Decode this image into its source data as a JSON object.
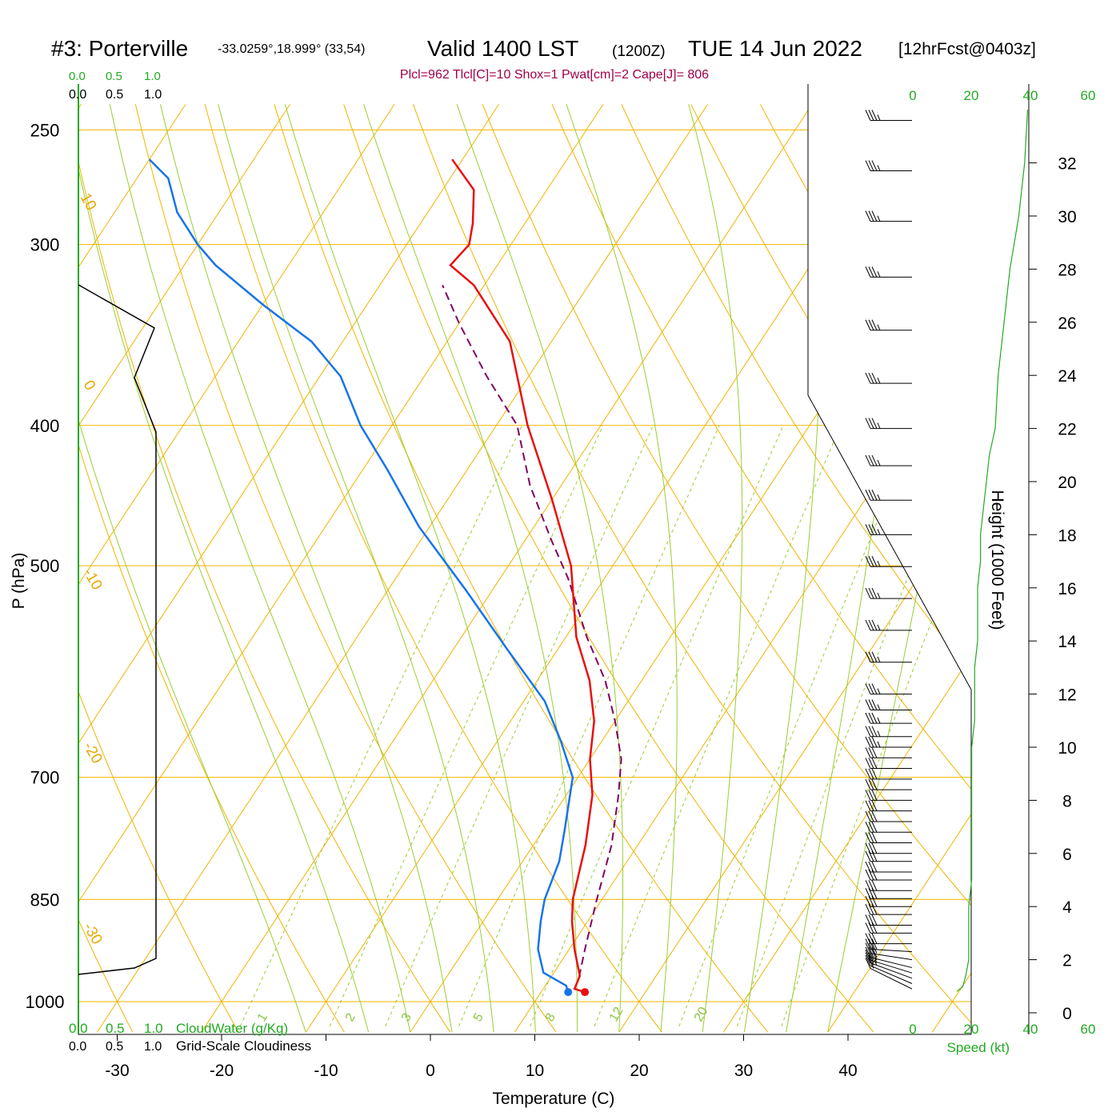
{
  "header": {
    "station": "#3: Porterville",
    "location": "-33.0259°,18.999° (33,54)",
    "valid": "Valid 1400 LST",
    "utc": "(1200Z)",
    "date": "TUE 14 Jun 2022",
    "forecast": "[12hrFcst@0403z]"
  },
  "indices": "Plcl=962 Tlcl[C]=10 Shox=1 Pwat[cm]=2 Cape[J]= 806",
  "colors": {
    "temperature": "#e81010",
    "dewpoint": "#1874e8",
    "parcel": "#800060",
    "isotherm": "#f0b400",
    "dry_adiabat": "#f0b400",
    "moist_adiabat": "#9acd32",
    "mixing_ratio": "#9acd32",
    "cloud_scale": "#22aa22",
    "speed_profile": "#22aa22"
  },
  "left_panel": {
    "cloudwater_ticks": [
      "0.0",
      "0.5",
      "1.0"
    ],
    "cloudiness_ticks": [
      "0.0",
      "0.5",
      "1.0"
    ],
    "cloudwater_label": "CloudWater (g/Kg)",
    "cloudiness_label": "Grid-Scale Cloudiness"
  },
  "speed_axis": {
    "ticks": [
      "0",
      "20",
      "40",
      "60"
    ],
    "label": "Speed (kt)"
  },
  "chart_data": {
    "type": "line",
    "title": "#3: Porterville",
    "xlabel": "Temperature (C)",
    "ylabel": "P (hPa)",
    "y2label": "Height (1000 Feet)",
    "xlim": [
      -34,
      36
    ],
    "ylim": [
      1040,
      250
    ],
    "x_ticks": [
      "-30",
      "-20",
      "-10",
      "0",
      "10",
      "20",
      "30",
      "40"
    ],
    "pressure_ticks": [
      "250",
      "300",
      "400",
      "500",
      "700",
      "850",
      "1000"
    ],
    "height_ticks": [
      "0",
      "2",
      "4",
      "6",
      "8",
      "10",
      "12",
      "14",
      "16",
      "18",
      "20",
      "22",
      "24",
      "26",
      "28",
      "30",
      "32"
    ],
    "isotherm_labels": [
      "10",
      "0",
      "-10",
      "-20",
      "-30",
      "0",
      "10",
      "20",
      "30"
    ],
    "mixing_ratio_labels": [
      "1",
      "2",
      "3",
      "5",
      "8",
      "12",
      "20"
    ],
    "series": [
      {
        "name": "Temperature",
        "points": [
          [
            14.2,
            985
          ],
          [
            13.0,
            980
          ],
          [
            12.7,
            960
          ],
          [
            10.5,
            920
          ],
          [
            8.5,
            880
          ],
          [
            7.2,
            850
          ],
          [
            5.0,
            780
          ],
          [
            2.5,
            720
          ],
          [
            0.0,
            680
          ],
          [
            -2.0,
            640
          ],
          [
            -5.0,
            600
          ],
          [
            -9.0,
            560
          ],
          [
            -14.0,
            500
          ],
          [
            -20.0,
            450
          ],
          [
            -27.0,
            400
          ],
          [
            -34.0,
            350
          ],
          [
            -41.0,
            320
          ],
          [
            -44.5,
            310
          ],
          [
            -44.0,
            300
          ],
          [
            -45.0,
            290
          ],
          [
            -47.0,
            275
          ],
          [
            -51.0,
            262
          ]
        ]
      },
      {
        "name": "Dewpoint",
        "points": [
          [
            12.6,
            985
          ],
          [
            12.0,
            975
          ],
          [
            9.0,
            955
          ],
          [
            7.0,
            920
          ],
          [
            5.5,
            880
          ],
          [
            4.5,
            850
          ],
          [
            3.5,
            800
          ],
          [
            2.0,
            760
          ],
          [
            -0.5,
            700
          ],
          [
            -4.0,
            660
          ],
          [
            -8.0,
            620
          ],
          [
            -15.0,
            570
          ],
          [
            -22.5,
            520
          ],
          [
            -31.0,
            470
          ],
          [
            -37.5,
            430
          ],
          [
            -43.0,
            400
          ],
          [
            -48.0,
            370
          ],
          [
            -53.0,
            350
          ],
          [
            -60.0,
            330
          ],
          [
            -67.0,
            310
          ],
          [
            -70.0,
            300
          ],
          [
            -74.0,
            285
          ],
          [
            -77.0,
            270
          ],
          [
            -80.0,
            262
          ]
        ]
      },
      {
        "name": "Parcel",
        "points": [
          [
            12.7,
            962
          ],
          [
            11.5,
            920
          ],
          [
            9.5,
            850
          ],
          [
            7.5,
            780
          ],
          [
            5.0,
            720
          ],
          [
            3.0,
            680
          ],
          [
            0.0,
            640
          ],
          [
            -3.5,
            600
          ],
          [
            -8.0,
            560
          ],
          [
            -13.5,
            510
          ],
          [
            -17.5,
            480
          ],
          [
            -23.0,
            440
          ],
          [
            -28.0,
            400
          ],
          [
            -34.0,
            370
          ],
          [
            -40.0,
            340
          ],
          [
            -44.0,
            320
          ]
        ]
      }
    ],
    "surface_points": {
      "temperature": 14.2,
      "dewpoint": 12.6,
      "pressure": 985
    },
    "wind_profile": {
      "direction_deg": [
        350,
        350,
        340,
        330,
        320,
        310,
        300,
        290,
        290,
        290,
        290,
        290,
        290,
        290,
        290,
        290,
        290,
        290,
        290,
        290,
        290,
        290,
        290,
        290,
        290,
        290,
        290,
        290,
        290,
        290,
        290,
        290,
        290,
        290,
        290,
        290,
        290,
        290,
        290,
        290,
        290,
        290,
        290,
        290,
        290,
        290
      ],
      "speed_kt": [
        20,
        25,
        28,
        30,
        30,
        30,
        32,
        32,
        33,
        33,
        33,
        33,
        33,
        33,
        33,
        33,
        33,
        33,
        33,
        33,
        33,
        33,
        34,
        34,
        34,
        34,
        34,
        35,
        35,
        35,
        35,
        35,
        35,
        35,
        35,
        35,
        36,
        36,
        36,
        36,
        37,
        37,
        38,
        38,
        38,
        38
      ],
      "height_kft": [
        0.9,
        1.1,
        1.3,
        1.5,
        1.7,
        2.0,
        2.3,
        2.6,
        3.0,
        3.3,
        3.7,
        4.0,
        4.3,
        4.6,
        5.0,
        5.3,
        5.7,
        6.0,
        6.4,
        6.8,
        7.2,
        7.6,
        8.0,
        8.4,
        8.8,
        9.2,
        9.6,
        10.0,
        10.4,
        10.9,
        11.4,
        12.0,
        13.2,
        14.4,
        15.6,
        16.8,
        18.0,
        19.3,
        20.6,
        22.0,
        23.7,
        25.7,
        27.7,
        29.8,
        31.7,
        33.6
      ]
    },
    "speed_profile": {
      "speed_kt": [
        15,
        17,
        18,
        19,
        19,
        19,
        20,
        20,
        20,
        20,
        20,
        20,
        21,
        21,
        21,
        22,
        22,
        22,
        23,
        23,
        24,
        25,
        26,
        28,
        29,
        31,
        33,
        36,
        38,
        39
      ],
      "height_kft": [
        0.8,
        1.0,
        1.4,
        2.0,
        3.0,
        4.0,
        5.0,
        6.0,
        7.0,
        8.0,
        9.0,
        10.0,
        11.0,
        12.0,
        13.0,
        14.0,
        15.0,
        16.0,
        17.0,
        18.0,
        19.0,
        20.0,
        21.0,
        22.0,
        24.0,
        26.0,
        28.0,
        30.0,
        32.0,
        34.0
      ]
    },
    "cloudiness_profile": {
      "value": [
        0.0,
        0.0,
        0.0,
        0.0,
        0.0,
        0.0,
        0.0,
        0.0,
        0.0,
        0.0,
        0.0,
        0.0,
        0.0,
        0.0,
        0.0,
        0.0,
        0.0
      ],
      "pressure": [
        1040,
        980,
        900,
        850,
        800,
        700,
        600,
        500,
        430,
        400,
        380,
        360,
        350,
        340,
        330,
        300,
        250
      ]
    },
    "legend": "none",
    "grid": true
  }
}
